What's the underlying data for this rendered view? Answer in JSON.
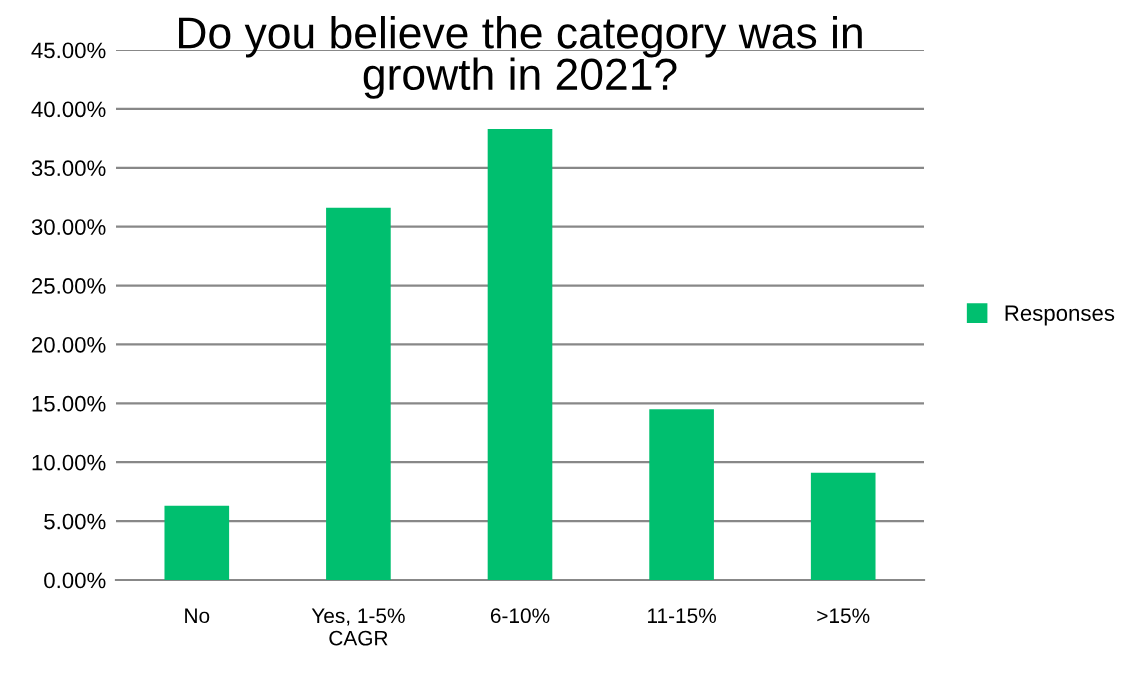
{
  "chart_data": {
    "type": "bar",
    "title": "Do you believe the category was in growth in 2021?",
    "categories": [
      "No",
      "Yes, 1-5%\nCAGR",
      "6-10%",
      "11-15%",
      ">15%"
    ],
    "series": [
      {
        "name": "Responses",
        "color": "#00bf6f",
        "values": [
          6.3,
          31.6,
          38.3,
          14.5,
          9.1
        ]
      }
    ],
    "ylim": [
      0,
      45
    ],
    "yticks": [
      {
        "value": 0,
        "label": "0.00%"
      },
      {
        "value": 5,
        "label": "5.00%"
      },
      {
        "value": 10,
        "label": "10.00%"
      },
      {
        "value": 15,
        "label": "15.00%"
      },
      {
        "value": 20,
        "label": "20.00%"
      },
      {
        "value": 25,
        "label": "25.00%"
      },
      {
        "value": 30,
        "label": "30.00%"
      },
      {
        "value": 35,
        "label": "35.00%"
      },
      {
        "value": 40,
        "label": "40.00%"
      },
      {
        "value": 45,
        "label": "45.00%"
      }
    ],
    "grid": "y",
    "legend": "right"
  }
}
